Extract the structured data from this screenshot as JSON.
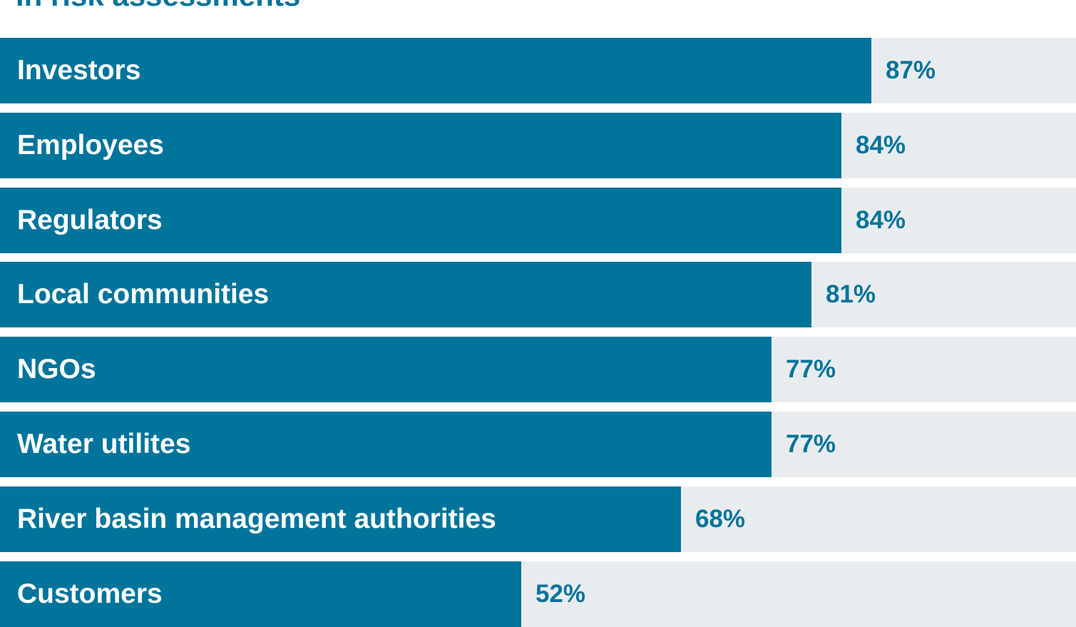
{
  "chart_data": {
    "type": "bar",
    "orientation": "horizontal",
    "title": "in risk assessments",
    "categories": [
      "Investors",
      "Employees",
      "Regulators",
      "Local communities",
      "NGOs",
      "Water utilites",
      "River basin management authorities",
      "Customers"
    ],
    "values": [
      87,
      84,
      84,
      81,
      77,
      77,
      68,
      52
    ],
    "value_labels": [
      "87%",
      "84%",
      "84%",
      "81%",
      "77%",
      "77%",
      "68%",
      "52%"
    ],
    "unit": "%",
    "xlim": [
      0,
      100
    ],
    "grid": false,
    "legend": "none",
    "colors": {
      "bar": "#00749b",
      "track": "#e9ecef",
      "category_text": "#ffffff",
      "value_text": "#00749b"
    }
  }
}
